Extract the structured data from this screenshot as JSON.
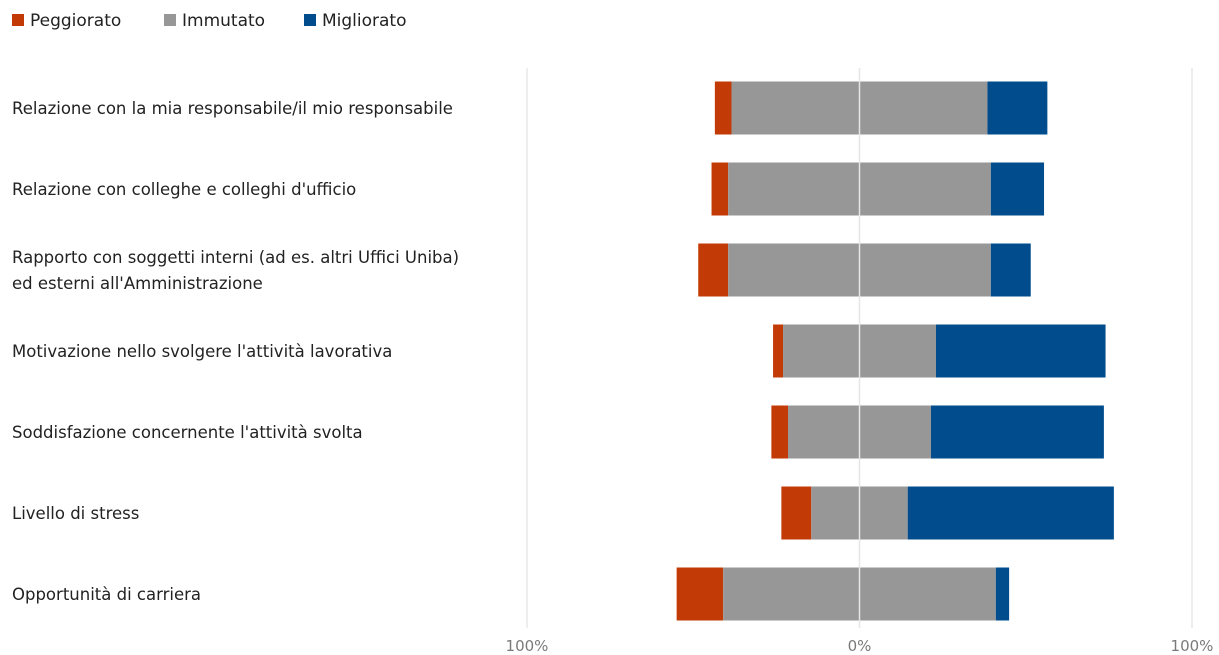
{
  "chart_data": {
    "type": "bar",
    "orientation": "horizontal",
    "stacked": true,
    "diverging": true,
    "categories": [
      [
        "Relazione con la mia responsabile/il mio responsabile"
      ],
      [
        "Relazione con colleghe e colleghi d'ufficio"
      ],
      [
        "Rapporto con soggetti interni (ad es. altri Uffici Uniba)",
        "ed esterni all'Amministrazione"
      ],
      [
        "Motivazione nello svolgere l'attività lavorativa"
      ],
      [
        "Soddisfazione concernente l'attività svolta"
      ],
      [
        "Livello di stress"
      ],
      [
        "Opportunità di carriera"
      ]
    ],
    "series": [
      {
        "name": "Peggiorato",
        "color": "#c23b06",
        "values": [
          5,
          5,
          9,
          3,
          5,
          9,
          14
        ]
      },
      {
        "name": "Immutato",
        "color": "#979797",
        "values": [
          77,
          79,
          79,
          46,
          43,
          29,
          82
        ]
      },
      {
        "name": "Migliorato",
        "color": "#004c8c",
        "values": [
          18,
          16,
          12,
          51,
          52,
          62,
          4
        ]
      }
    ],
    "xlim": [
      -100,
      100
    ],
    "x_ticks": [
      "100%",
      "0%",
      "100%"
    ],
    "legend_position": "top-left",
    "grid": true
  }
}
